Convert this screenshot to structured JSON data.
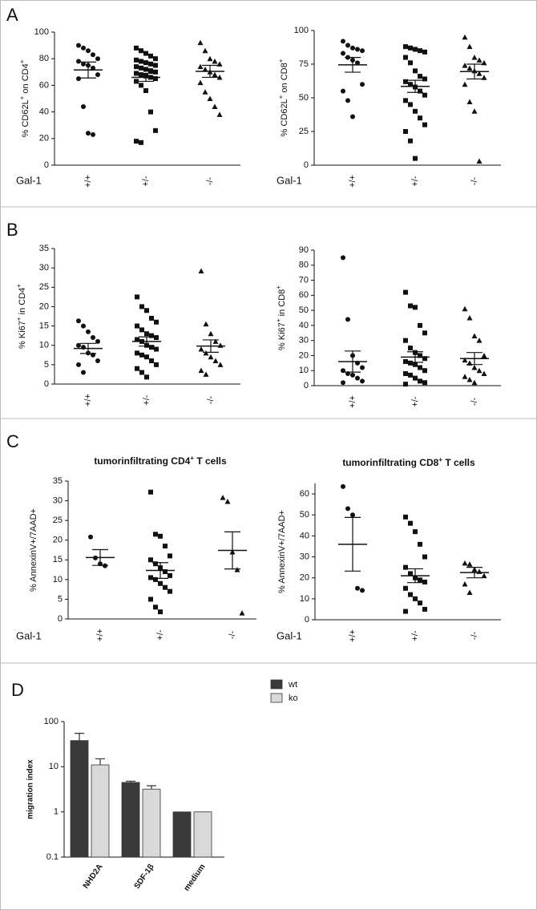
{
  "panels": [
    "A",
    "B",
    "C",
    "D"
  ],
  "chart_data": [
    {
      "type": "dotplot",
      "ylabel": [
        "% CD62L",
        "+",
        " on CD4",
        "+"
      ],
      "xlabel": "Gal-1",
      "categories": [
        "+/+",
        "+/-",
        "-/-"
      ],
      "markers": [
        "circle",
        "square",
        "triangle"
      ],
      "groups": [
        [
          90,
          88,
          86,
          83,
          80,
          78,
          76,
          75,
          73,
          68,
          65,
          44,
          24,
          23
        ],
        [
          88,
          86,
          84,
          82,
          80,
          79,
          78,
          77,
          76,
          75,
          74,
          73,
          72,
          71,
          70,
          69,
          68,
          67,
          66,
          65,
          63,
          60,
          56,
          40,
          26,
          18,
          17
        ],
        [
          92,
          86,
          80,
          78,
          76,
          74,
          72,
          70,
          68,
          66,
          62,
          55,
          50,
          44,
          38
        ]
      ],
      "means": [
        71.5,
        66,
        70.5
      ],
      "errors": [
        6,
        3,
        4.5
      ],
      "ylim": [
        0,
        100
      ],
      "yticks": [
        0,
        20,
        40,
        60,
        80,
        100
      ]
    },
    {
      "type": "dotplot",
      "ylabel": [
        "% CD62L",
        "+",
        " on CD8",
        "+"
      ],
      "xlabel": "Gal-1",
      "categories": [
        "+/+",
        "+/-",
        "-/-"
      ],
      "markers": [
        "circle",
        "square",
        "triangle"
      ],
      "groups": [
        [
          92,
          89,
          87,
          86,
          85,
          83,
          80,
          78,
          76,
          60,
          55,
          48,
          36
        ],
        [
          88,
          87,
          86,
          85,
          84,
          80,
          76,
          70,
          66,
          64,
          62,
          60,
          58,
          55,
          52,
          48,
          45,
          40,
          35,
          30,
          25,
          18,
          5
        ],
        [
          95,
          88,
          80,
          78,
          76,
          74,
          72,
          70,
          68,
          65,
          60,
          47,
          40,
          3
        ]
      ],
      "means": [
        74.5,
        58.5,
        69.5
      ],
      "errors": [
        5.5,
        4.5,
        5.5
      ],
      "ylim": [
        0,
        100
      ],
      "yticks": [
        0,
        25,
        50,
        75,
        100
      ]
    },
    {
      "type": "dotplot",
      "ylabel": [
        "% Ki67",
        "+",
        " in CD4",
        "+"
      ],
      "categories": [
        "+/+",
        "+/-",
        "-/-"
      ],
      "markers": [
        "circle",
        "square",
        "triangle"
      ],
      "groups": [
        [
          16.3,
          15,
          13.5,
          12,
          11,
          10,
          9.5,
          8,
          7.5,
          6,
          5,
          3
        ],
        [
          22.5,
          20,
          19,
          17,
          16,
          15,
          14,
          13,
          12.5,
          12,
          11.5,
          11,
          10,
          9.5,
          9,
          8,
          7.5,
          7,
          6,
          5,
          4,
          3,
          1.8
        ],
        [
          29.2,
          15.5,
          13,
          11,
          10,
          9,
          8,
          7,
          6,
          5,
          3.5,
          2.5
        ]
      ],
      "means": [
        9.2,
        11,
        9.8
      ],
      "errors": [
        1.3,
        1.2,
        1.6
      ],
      "ylim": [
        0,
        35
      ],
      "yticks": [
        0,
        5,
        10,
        15,
        20,
        25,
        30,
        35
      ]
    },
    {
      "type": "dotplot",
      "ylabel": [
        "% Ki67",
        "+",
        " in CD8",
        "+"
      ],
      "categories": [
        "+/+",
        "+/-",
        "-/-"
      ],
      "markers": [
        "circle",
        "square",
        "triangle"
      ],
      "groups": [
        [
          85,
          44,
          20,
          15,
          12,
          10,
          8,
          7,
          5,
          3,
          2
        ],
        [
          62,
          53,
          52,
          40,
          35,
          30,
          25,
          22,
          20,
          18,
          16,
          15,
          14,
          12,
          10,
          8,
          7,
          5,
          3,
          2,
          1
        ],
        [
          51,
          45,
          33,
          30,
          20,
          17,
          15,
          12,
          10,
          8,
          6,
          4,
          2
        ]
      ],
      "means": [
        16,
        19,
        18
      ],
      "errors": [
        7,
        3.5,
        4
      ],
      "ylim": [
        0,
        90
      ],
      "yticks": [
        0,
        10,
        20,
        30,
        40,
        50,
        60,
        70,
        80,
        90
      ]
    },
    {
      "type": "dotplot",
      "title": [
        "tumorinfiltrating CD4",
        "+",
        " T cells"
      ],
      "ylabel": [
        "% AnnexinV+/7AAD+"
      ],
      "xlabel": "Gal-1",
      "categories": [
        "+/+",
        "+/-",
        "-/-"
      ],
      "markers": [
        "circle",
        "square",
        "triangle"
      ],
      "groups": [
        [
          20.8,
          15.5,
          14,
          13.5
        ],
        [
          32.2,
          21.5,
          21,
          18.5,
          16,
          15,
          14,
          13,
          12,
          11,
          10.5,
          10,
          9,
          8,
          7,
          5,
          3,
          1.8
        ],
        [
          30.8,
          29.8,
          17,
          12.5,
          1.5
        ]
      ],
      "means": [
        15.6,
        12.3,
        17.4
      ],
      "errors": [
        2,
        2,
        4.7
      ],
      "ylim": [
        0,
        35
      ],
      "yticks": [
        0,
        5,
        10,
        15,
        20,
        25,
        30,
        35
      ]
    },
    {
      "type": "dotplot",
      "title": [
        "tumorinfiltrating CD8",
        "+",
        " T cells"
      ],
      "ylabel": [
        "% AnnexinV+/7AAD+"
      ],
      "xlabel": "Gal-1",
      "categories": [
        "+/+",
        "+/-",
        "-/-"
      ],
      "markers": [
        "circle",
        "square",
        "triangle"
      ],
      "groups": [
        [
          63.5,
          53,
          50,
          15,
          14
        ],
        [
          49,
          46,
          42,
          36,
          30,
          25,
          22,
          20,
          19,
          18,
          15,
          12,
          10,
          8,
          5,
          4
        ],
        [
          27,
          26.5,
          24,
          23,
          21,
          17,
          13
        ]
      ],
      "means": [
        36,
        21,
        22.5
      ],
      "errors": [
        12.8,
        3.3,
        2.5
      ],
      "ylim": [
        0,
        65
      ],
      "yticks": [
        0,
        10,
        20,
        30,
        40,
        50,
        60
      ]
    },
    {
      "type": "bar",
      "log": true,
      "ylabel": "migration index",
      "categories": [
        "NHD2A",
        "SDF-1β",
        "medium"
      ],
      "series": [
        {
          "name": "wt",
          "color": "#3a3a3a",
          "values": [
            38,
            4.5,
            1
          ],
          "errors": [
            17,
            0.3,
            0
          ]
        },
        {
          "name": "ko",
          "color": "#d9d9d9",
          "values": [
            11,
            3.2,
            1
          ],
          "errors": [
            4,
            0.6,
            0
          ]
        }
      ],
      "ylim": [
        0.1,
        100
      ],
      "yticks": [
        0.1,
        1,
        10,
        100
      ],
      "legend": "upper right"
    }
  ]
}
